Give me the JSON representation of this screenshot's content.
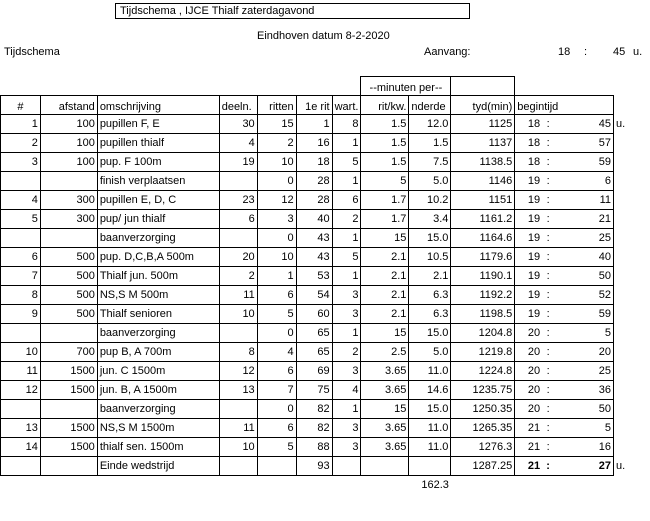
{
  "title": "Tijdschema , IJCE Thialf zaterdagavond",
  "location_date": "Eindhoven datum 8-2-2020",
  "subtitle": "Tijdschema",
  "start": {
    "label": "Aanvang:",
    "hour": "18",
    "sep": ":",
    "minute": "45",
    "unit": "u."
  },
  "headers": {
    "nr": "#",
    "afstand": "afstand",
    "omschrijving": "omschrijving",
    "deeln": "deeln.",
    "ritten": "ritten",
    "eerste_rit": "1e rit",
    "wart": "wart.",
    "group": "--minuten per--",
    "rit_kw": "rit/kw.",
    "onderdeel": "nderde",
    "tyd": "tyd(min)",
    "begintijd": "begintijd"
  },
  "rows": [
    {
      "nr": "1",
      "afstand": "100",
      "omschrijving": "pupillen F, E",
      "deeln": "30",
      "ritten": "15",
      "eerste_rit": "1",
      "wart": "8",
      "rit_kw": "1.5",
      "onderdeel": "12.0",
      "tyd": "1125",
      "hour": "18",
      "minute": "45",
      "unit": "u."
    },
    {
      "nr": "2",
      "afstand": "100",
      "omschrijving": "pupillen thialf",
      "deeln": "4",
      "ritten": "2",
      "eerste_rit": "16",
      "wart": "1",
      "rit_kw": "1.5",
      "onderdeel": "1.5",
      "tyd": "1137",
      "hour": "18",
      "minute": "57",
      "unit": ""
    },
    {
      "nr": "3",
      "afstand": "100",
      "omschrijving": "pup. F 100m",
      "deeln": "19",
      "ritten": "10",
      "eerste_rit": "18",
      "wart": "5",
      "rit_kw": "1.5",
      "onderdeel": "7.5",
      "tyd": "1138.5",
      "hour": "18",
      "minute": "59",
      "unit": ""
    },
    {
      "nr": "",
      "afstand": "",
      "omschrijving": "finish verplaatsen",
      "deeln": "",
      "ritten": "0",
      "eerste_rit": "28",
      "wart": "1",
      "rit_kw": "5",
      "onderdeel": "5.0",
      "tyd": "1146",
      "hour": "19",
      "minute": "6",
      "unit": ""
    },
    {
      "nr": "4",
      "afstand": "300",
      "omschrijving": "pupillen E, D, C",
      "deeln": "23",
      "ritten": "12",
      "eerste_rit": "28",
      "wart": "6",
      "rit_kw": "1.7",
      "onderdeel": "10.2",
      "tyd": "1151",
      "hour": "19",
      "minute": "11",
      "unit": ""
    },
    {
      "nr": "5",
      "afstand": "300",
      "omschrijving": "pup/ jun thialf",
      "deeln": "6",
      "ritten": "3",
      "eerste_rit": "40",
      "wart": "2",
      "rit_kw": "1.7",
      "onderdeel": "3.4",
      "tyd": "1161.2",
      "hour": "19",
      "minute": "21",
      "unit": ""
    },
    {
      "nr": "",
      "afstand": "",
      "omschrijving": "baanverzorging",
      "deeln": "",
      "ritten": "0",
      "eerste_rit": "43",
      "wart": "1",
      "rit_kw": "15",
      "onderdeel": "15.0",
      "tyd": "1164.6",
      "hour": "19",
      "minute": "25",
      "unit": ""
    },
    {
      "nr": "6",
      "afstand": "500",
      "omschrijving": "pup. D,C,B,A 500m",
      "deeln": "20",
      "ritten": "10",
      "eerste_rit": "43",
      "wart": "5",
      "rit_kw": "2.1",
      "onderdeel": "10.5",
      "tyd": "1179.6",
      "hour": "19",
      "minute": "40",
      "unit": ""
    },
    {
      "nr": "7",
      "afstand": "500",
      "omschrijving": "Thialf jun. 500m",
      "deeln": "2",
      "ritten": "1",
      "eerste_rit": "53",
      "wart": "1",
      "rit_kw": "2.1",
      "onderdeel": "2.1",
      "tyd": "1190.1",
      "hour": "19",
      "minute": "50",
      "unit": ""
    },
    {
      "nr": "8",
      "afstand": "500",
      "omschrijving": "NS,S M 500m",
      "deeln": "11",
      "ritten": "6",
      "eerste_rit": "54",
      "wart": "3",
      "rit_kw": "2.1",
      "onderdeel": "6.3",
      "tyd": "1192.2",
      "hour": "19",
      "minute": "52",
      "unit": ""
    },
    {
      "nr": "9",
      "afstand": "500",
      "omschrijving": "Thialf senioren",
      "deeln": "10",
      "ritten": "5",
      "eerste_rit": "60",
      "wart": "3",
      "rit_kw": "2.1",
      "onderdeel": "6.3",
      "tyd": "1198.5",
      "hour": "19",
      "minute": "59",
      "unit": ""
    },
    {
      "nr": "",
      "afstand": "",
      "omschrijving": "baanverzorging",
      "deeln": "",
      "ritten": "0",
      "eerste_rit": "65",
      "wart": "1",
      "rit_kw": "15",
      "onderdeel": "15.0",
      "tyd": "1204.8",
      "hour": "20",
      "minute": "5",
      "unit": ""
    },
    {
      "nr": "10",
      "afstand": "700",
      "omschrijving": "pup B, A 700m",
      "deeln": "8",
      "ritten": "4",
      "eerste_rit": "65",
      "wart": "2",
      "rit_kw": "2.5",
      "onderdeel": "5.0",
      "tyd": "1219.8",
      "hour": "20",
      "minute": "20",
      "unit": ""
    },
    {
      "nr": "11",
      "afstand": "1500",
      "omschrijving": "jun. C 1500m",
      "deeln": "12",
      "ritten": "6",
      "eerste_rit": "69",
      "wart": "3",
      "rit_kw": "3.65",
      "onderdeel": "11.0",
      "tyd": "1224.8",
      "hour": "20",
      "minute": "25",
      "unit": ""
    },
    {
      "nr": "12",
      "afstand": "1500",
      "omschrijving": "jun. B, A 1500m",
      "deeln": "13",
      "ritten": "7",
      "eerste_rit": "75",
      "wart": "4",
      "rit_kw": "3.65",
      "onderdeel": "14.6",
      "tyd": "1235.75",
      "hour": "20",
      "minute": "36",
      "unit": ""
    },
    {
      "nr": "",
      "afstand": "",
      "omschrijving": "baanverzorging",
      "deeln": "",
      "ritten": "0",
      "eerste_rit": "82",
      "wart": "1",
      "rit_kw": "15",
      "onderdeel": "15.0",
      "tyd": "1250.35",
      "hour": "20",
      "minute": "50",
      "unit": ""
    },
    {
      "nr": "13",
      "afstand": "1500",
      "omschrijving": "NS,S M 1500m",
      "deeln": "11",
      "ritten": "6",
      "eerste_rit": "82",
      "wart": "3",
      "rit_kw": "3.65",
      "onderdeel": "11.0",
      "tyd": "1265.35",
      "hour": "21",
      "minute": "5",
      "unit": ""
    },
    {
      "nr": "14",
      "afstand": "1500",
      "omschrijving": "thialf sen. 1500m",
      "deeln": "10",
      "ritten": "5",
      "eerste_rit": "88",
      "wart": "3",
      "rit_kw": "3.65",
      "onderdeel": "11.0",
      "tyd": "1276.3",
      "hour": "21",
      "minute": "16",
      "unit": ""
    }
  ],
  "final": {
    "omschrijving": "Einde wedstrijd",
    "eerste_rit": "93",
    "tyd": "1287.25",
    "hour": "21",
    "minute": "27",
    "unit": "u."
  },
  "total_minutes": "162.3"
}
